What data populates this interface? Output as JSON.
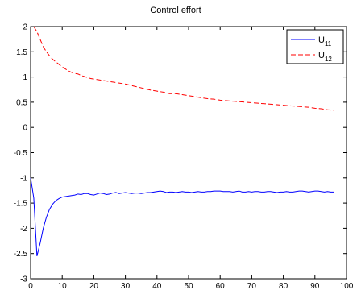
{
  "chart_data": {
    "type": "line",
    "title": "Control effort",
    "xlabel": "",
    "ylabel": "",
    "xlim": [
      0,
      100
    ],
    "ylim": [
      -3,
      2
    ],
    "xticks": [
      0,
      10,
      20,
      30,
      40,
      50,
      60,
      70,
      80,
      90,
      100
    ],
    "yticks": [
      -3,
      -2.5,
      -2,
      -1.5,
      -1,
      -0.5,
      0,
      0.5,
      1,
      1.5,
      2
    ],
    "grid": false,
    "legend_position": "top-right",
    "series": [
      {
        "name": "U11",
        "legend_base": "U",
        "legend_sub": "11",
        "color": "#0000ff",
        "style": "solid",
        "x": [
          0,
          1,
          2,
          3,
          4,
          5,
          6,
          7,
          8,
          9,
          10,
          11,
          12,
          13,
          14,
          15,
          16,
          17,
          18,
          19,
          20,
          21,
          22,
          23,
          24,
          25,
          26,
          27,
          28,
          29,
          30,
          31,
          32,
          33,
          34,
          35,
          36,
          37,
          38,
          39,
          40,
          41,
          42,
          43,
          44,
          45,
          46,
          47,
          48,
          49,
          50,
          51,
          52,
          53,
          54,
          55,
          56,
          57,
          58,
          59,
          60,
          61,
          62,
          63,
          64,
          65,
          66,
          67,
          68,
          69,
          70,
          71,
          72,
          73,
          74,
          75,
          76,
          77,
          78,
          79,
          80,
          81,
          82,
          83,
          84,
          85,
          86,
          87,
          88,
          89,
          90,
          91,
          92,
          93,
          94,
          95,
          96
        ],
        "y": [
          -1.0,
          -1.4,
          -2.55,
          -2.3,
          -2.0,
          -1.78,
          -1.62,
          -1.52,
          -1.45,
          -1.41,
          -1.38,
          -1.37,
          -1.36,
          -1.35,
          -1.34,
          -1.32,
          -1.33,
          -1.31,
          -1.31,
          -1.33,
          -1.34,
          -1.32,
          -1.3,
          -1.31,
          -1.33,
          -1.32,
          -1.3,
          -1.29,
          -1.31,
          -1.3,
          -1.29,
          -1.3,
          -1.31,
          -1.3,
          -1.3,
          -1.31,
          -1.3,
          -1.29,
          -1.29,
          -1.28,
          -1.27,
          -1.26,
          -1.27,
          -1.29,
          -1.28,
          -1.28,
          -1.29,
          -1.28,
          -1.27,
          -1.28,
          -1.28,
          -1.29,
          -1.28,
          -1.27,
          -1.28,
          -1.28,
          -1.27,
          -1.27,
          -1.26,
          -1.26,
          -1.26,
          -1.27,
          -1.27,
          -1.27,
          -1.28,
          -1.27,
          -1.26,
          -1.28,
          -1.28,
          -1.27,
          -1.28,
          -1.27,
          -1.27,
          -1.28,
          -1.28,
          -1.27,
          -1.27,
          -1.28,
          -1.29,
          -1.28,
          -1.28,
          -1.27,
          -1.28,
          -1.28,
          -1.27,
          -1.26,
          -1.26,
          -1.27,
          -1.28,
          -1.27,
          -1.26,
          -1.26,
          -1.27,
          -1.28,
          -1.27,
          -1.28,
          -1.28
        ]
      },
      {
        "name": "U12",
        "legend_base": "U",
        "legend_sub": "12",
        "color": "#ff0000",
        "style": "dashed",
        "x": [
          1,
          2,
          3,
          4,
          5,
          6,
          7,
          8,
          9,
          10,
          11,
          12,
          13,
          14,
          15,
          16,
          17,
          18,
          19,
          20,
          22,
          24,
          26,
          28,
          30,
          32,
          34,
          36,
          38,
          40,
          42,
          44,
          46,
          48,
          50,
          52,
          54,
          56,
          58,
          60,
          62,
          64,
          66,
          68,
          70,
          72,
          74,
          76,
          78,
          80,
          82,
          84,
          86,
          88,
          90,
          92,
          94,
          96
        ],
        "y": [
          2.0,
          1.9,
          1.75,
          1.6,
          1.5,
          1.42,
          1.35,
          1.3,
          1.25,
          1.2,
          1.16,
          1.12,
          1.09,
          1.07,
          1.06,
          1.03,
          1.01,
          0.99,
          0.97,
          0.96,
          0.94,
          0.92,
          0.9,
          0.88,
          0.86,
          0.83,
          0.8,
          0.77,
          0.74,
          0.72,
          0.7,
          0.67,
          0.67,
          0.65,
          0.63,
          0.61,
          0.59,
          0.57,
          0.56,
          0.54,
          0.53,
          0.52,
          0.51,
          0.5,
          0.49,
          0.48,
          0.47,
          0.46,
          0.45,
          0.44,
          0.43,
          0.42,
          0.41,
          0.4,
          0.38,
          0.37,
          0.35,
          0.34
        ]
      }
    ]
  }
}
